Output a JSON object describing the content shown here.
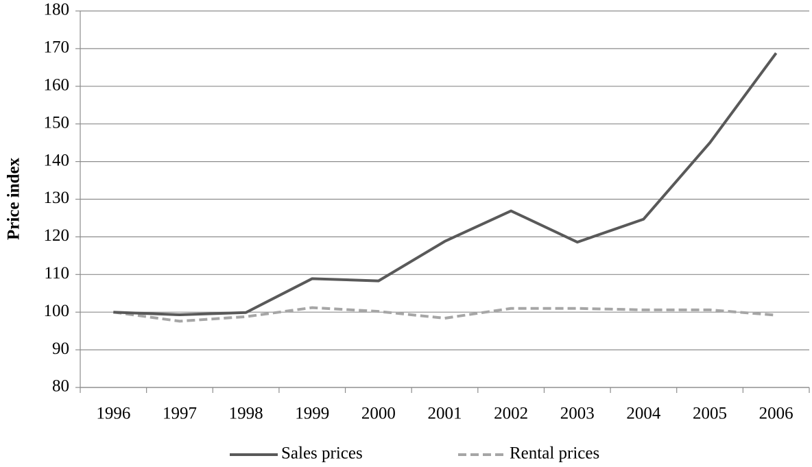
{
  "chart_data": {
    "type": "line",
    "y_label": "Price index",
    "categories": [
      "1996",
      "1997",
      "1998",
      "1999",
      "2000",
      "2001",
      "2002",
      "2003",
      "2004",
      "2005",
      "2006"
    ],
    "series": [
      {
        "name": "Sales prices",
        "color": "#595959",
        "dash": false,
        "values": [
          100,
          99.3,
          99.9,
          108.9,
          108.3,
          118.8,
          126.9,
          118.6,
          124.7,
          145,
          168.8
        ]
      },
      {
        "name": "Rental prices",
        "color": "#a6a6a6",
        "dash": true,
        "values": [
          100,
          97.6,
          98.8,
          101.2,
          100.2,
          98.4,
          101,
          101,
          100.6,
          100.6,
          99.2
        ]
      }
    ],
    "ylim": [
      80,
      180
    ],
    "yticks": [
      80,
      90,
      100,
      110,
      120,
      130,
      140,
      150,
      160,
      170,
      180
    ],
    "grid": true,
    "legend": "bottom"
  }
}
